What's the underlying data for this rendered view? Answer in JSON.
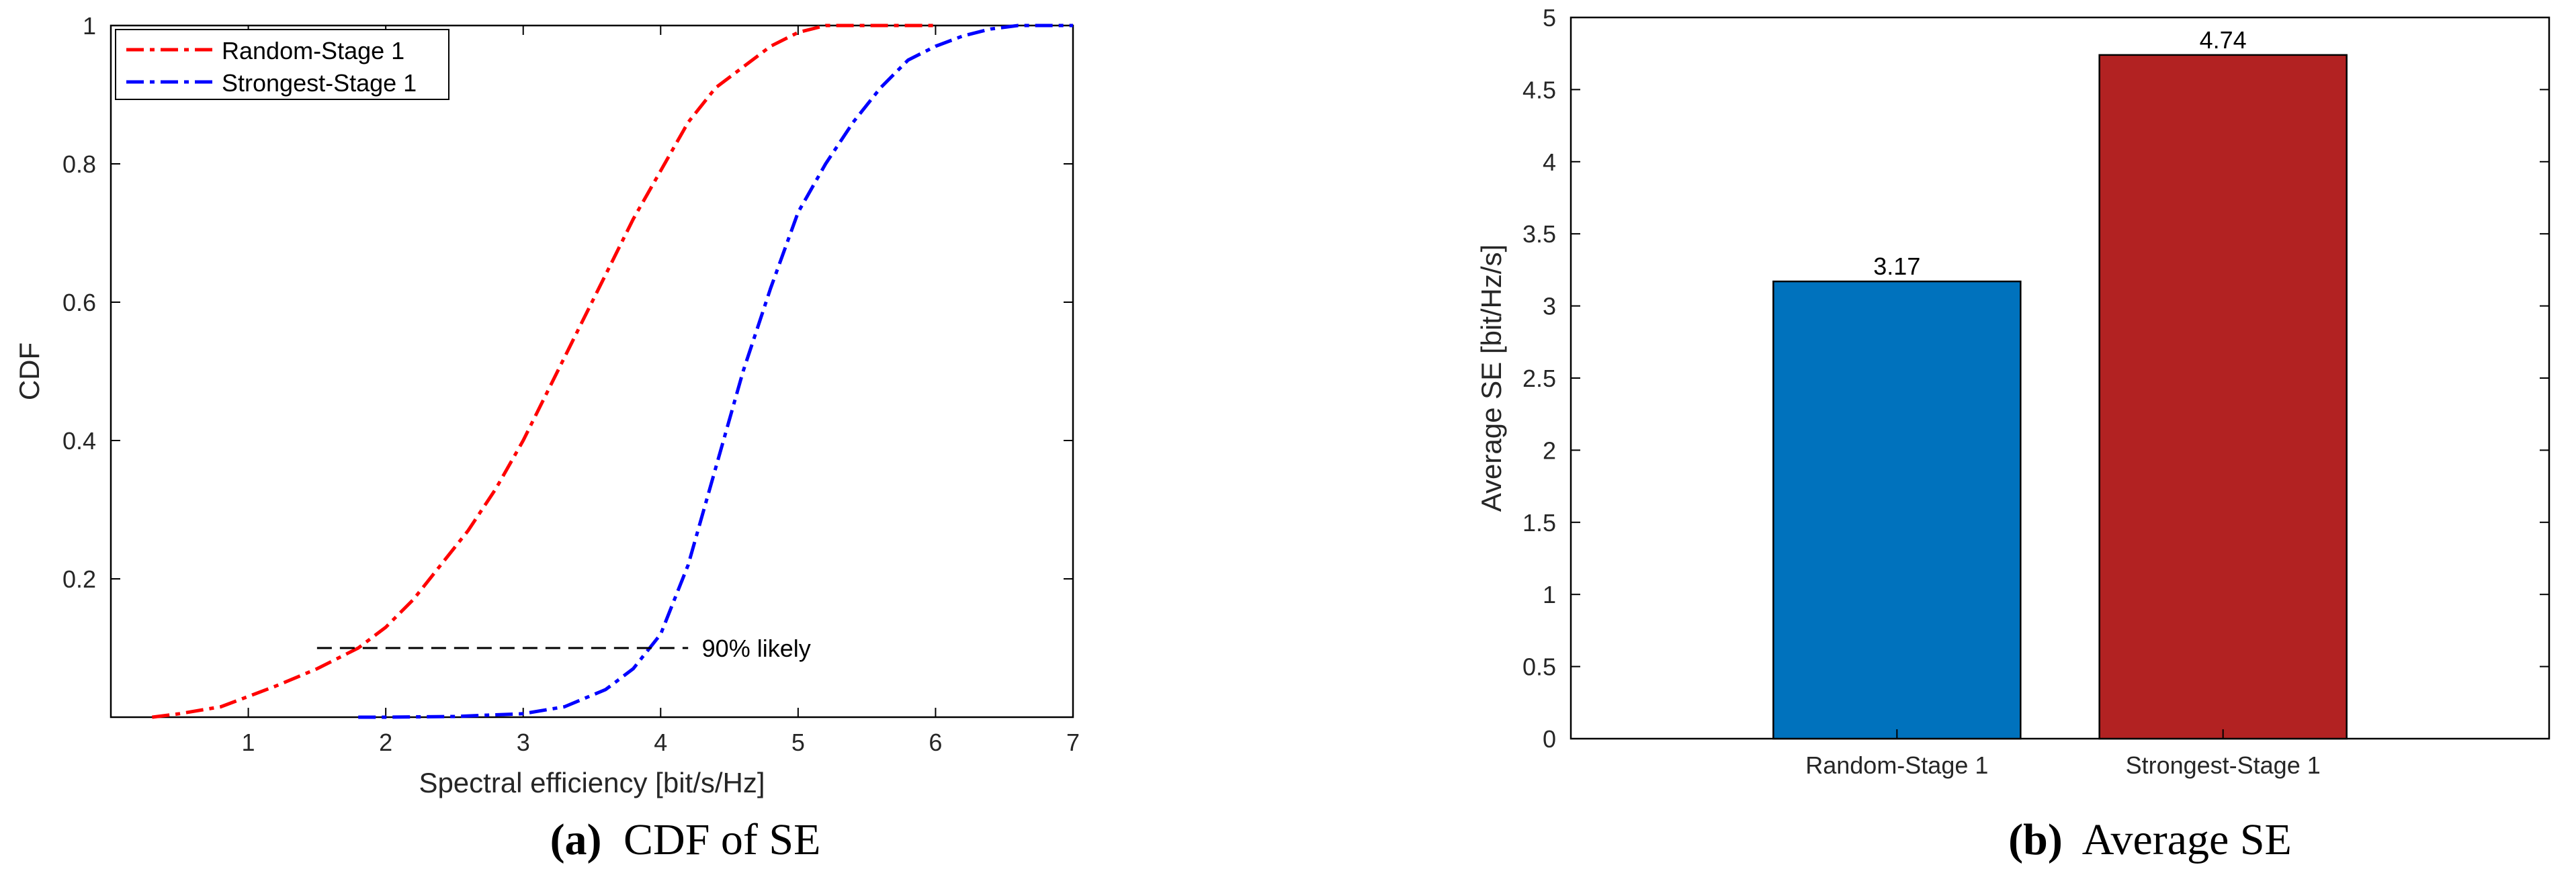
{
  "chart_data": [
    {
      "type": "line",
      "xlabel": "Spectral efficiency [bit/s/Hz]",
      "ylabel": "CDF",
      "xlim": [
        0,
        7
      ],
      "ylim": [
        0,
        1
      ],
      "xticks": [
        "1",
        "2",
        "3",
        "4",
        "5",
        "6",
        "7"
      ],
      "yticks": [
        "0.2",
        "0.4",
        "0.6",
        "0.8",
        "1"
      ],
      "grid": false,
      "legend_position": "top-left",
      "series": [
        {
          "name": "Random-Stage 1",
          "color": "#ff0000",
          "x": [
            0.3,
            0.5,
            0.8,
            1.0,
            1.2,
            1.5,
            1.8,
            2.0,
            2.2,
            2.4,
            2.6,
            2.8,
            3.0,
            3.2,
            3.4,
            3.6,
            3.8,
            4.0,
            4.2,
            4.4,
            4.6,
            4.8,
            5.0,
            5.2,
            5.5,
            5.8,
            6.0
          ],
          "y": [
            0.0,
            0.005,
            0.015,
            0.03,
            0.045,
            0.07,
            0.1,
            0.13,
            0.17,
            0.22,
            0.27,
            0.33,
            0.4,
            0.48,
            0.56,
            0.64,
            0.72,
            0.79,
            0.86,
            0.91,
            0.94,
            0.97,
            0.99,
            1.0,
            1.0,
            1.0,
            1.0
          ]
        },
        {
          "name": "Strongest-Stage 1",
          "color": "#0000ff",
          "x": [
            1.8,
            2.0,
            2.5,
            3.0,
            3.3,
            3.6,
            3.8,
            4.0,
            4.2,
            4.4,
            4.6,
            4.8,
            5.0,
            5.2,
            5.4,
            5.6,
            5.8,
            6.0,
            6.2,
            6.4,
            6.6,
            6.8,
            7.0
          ],
          "y": [
            0.0,
            0.0,
            0.001,
            0.005,
            0.015,
            0.04,
            0.07,
            0.12,
            0.22,
            0.36,
            0.5,
            0.62,
            0.73,
            0.8,
            0.86,
            0.91,
            0.95,
            0.97,
            0.985,
            0.995,
            1.0,
            1.0,
            1.0
          ]
        }
      ],
      "annotations": [
        {
          "text": "90% likely",
          "y": 0.1,
          "x_start": 1.5,
          "x_end": 4.2,
          "text_x": 4.3
        }
      ],
      "caption_letter": "(a)",
      "caption_text": "CDF of SE"
    },
    {
      "type": "bar",
      "ylabel": "Average SE [bit/Hz/s]",
      "categories": [
        "Random-Stage 1",
        "Strongest-Stage 1"
      ],
      "values": [
        3.17,
        4.74
      ],
      "value_labels": [
        "3.17",
        "4.74"
      ],
      "colors": [
        "#0072bd",
        "#b22222"
      ],
      "ylim": [
        0,
        5
      ],
      "yticks": [
        "0",
        "0.5",
        "1",
        "1.5",
        "2",
        "2.5",
        "3",
        "3.5",
        "4",
        "4.5",
        "5"
      ],
      "grid": false,
      "caption_letter": "(b)",
      "caption_text": "Average SE"
    }
  ]
}
